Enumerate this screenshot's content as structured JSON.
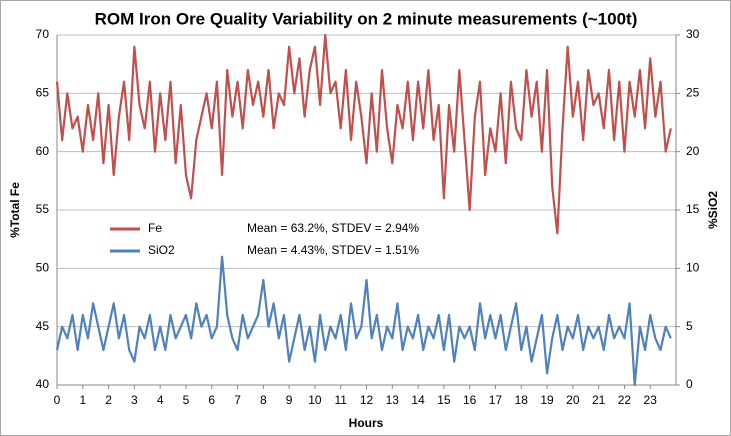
{
  "chart_data": {
    "type": "line",
    "title": "ROM Iron Ore Quality Variability on 2 minute measurements (~100t)",
    "x_label": "Hours",
    "y_label": "%Total Fe",
    "y2_label": "%SiO2",
    "x": [
      0,
      0.2,
      0.4,
      0.6,
      0.8,
      1,
      1.2,
      1.4,
      1.6,
      1.8,
      2,
      2.2,
      2.4,
      2.6,
      2.8,
      3,
      3.2,
      3.4,
      3.6,
      3.8,
      4,
      4.2,
      4.4,
      4.6,
      4.8,
      5,
      5.2,
      5.4,
      5.6,
      5.8,
      6,
      6.2,
      6.4,
      6.6,
      6.8,
      7,
      7.2,
      7.4,
      7.6,
      7.8,
      8,
      8.2,
      8.4,
      8.6,
      8.8,
      9,
      9.2,
      9.4,
      9.6,
      9.8,
      10,
      10.2,
      10.4,
      10.6,
      10.8,
      11,
      11.2,
      11.4,
      11.6,
      11.8,
      12,
      12.2,
      12.4,
      12.6,
      12.8,
      13,
      13.2,
      13.4,
      13.6,
      13.8,
      14,
      14.2,
      14.4,
      14.6,
      14.8,
      15,
      15.2,
      15.4,
      15.6,
      15.8,
      16,
      16.2,
      16.4,
      16.6,
      16.8,
      17,
      17.2,
      17.4,
      17.6,
      17.8,
      18,
      18.2,
      18.4,
      18.6,
      18.8,
      19,
      19.2,
      19.4,
      19.6,
      19.8,
      20,
      20.2,
      20.4,
      20.6,
      20.8,
      21,
      21.2,
      21.4,
      21.6,
      21.8,
      22,
      22.2,
      22.4,
      22.6,
      22.8,
      23,
      23.2,
      23.4,
      23.6,
      23.8
    ],
    "series": [
      {
        "name": "Fe",
        "color": "#c0504d",
        "axis": "y",
        "values": [
          66,
          61,
          65,
          62,
          63,
          60,
          64,
          61,
          65,
          59,
          64,
          58,
          63,
          66,
          61,
          69,
          64,
          62,
          66,
          60,
          65,
          61,
          66,
          59,
          64,
          58,
          56,
          61,
          63,
          65,
          62,
          66,
          58,
          67,
          63,
          66,
          62,
          67,
          64,
          66,
          63,
          67,
          62,
          65,
          64,
          69,
          65,
          68,
          63,
          67,
          69,
          64,
          70,
          65,
          66,
          62,
          67,
          61,
          66,
          63,
          59,
          65,
          60,
          67,
          62,
          59,
          64,
          62,
          66,
          61,
          66,
          62,
          67,
          61,
          64,
          56,
          64,
          60,
          67,
          61,
          55,
          63,
          66,
          58,
          62,
          60,
          65,
          59,
          66,
          62,
          61,
          67,
          63,
          66,
          60,
          67,
          57,
          53,
          62,
          69,
          63,
          66,
          61,
          67,
          64,
          65,
          62,
          67,
          61,
          66,
          60,
          66,
          63,
          67,
          62,
          68,
          63,
          66,
          60,
          62
        ]
      },
      {
        "name": "SiO2",
        "color": "#4f81bd",
        "axis": "y2",
        "values": [
          3,
          5,
          4,
          6,
          3,
          6,
          4,
          7,
          5,
          3,
          5,
          7,
          4,
          6,
          3,
          2,
          5,
          4,
          6,
          3,
          5,
          3,
          6,
          4,
          5,
          6,
          4,
          7,
          5,
          6,
          4,
          5,
          11,
          6,
          4,
          3,
          6,
          4,
          5,
          6,
          9,
          5,
          7,
          4,
          6,
          2,
          4,
          6,
          3,
          5,
          2,
          6,
          3,
          5,
          4,
          6,
          3,
          7,
          4,
          5,
          9,
          4,
          6,
          3,
          5,
          4,
          7,
          3,
          5,
          4,
          6,
          3,
          5,
          4,
          6,
          3,
          6,
          2,
          5,
          4,
          5,
          3,
          7,
          4,
          6,
          4,
          6,
          3,
          5,
          7,
          3,
          5,
          2,
          4,
          6,
          1,
          4,
          6,
          3,
          5,
          4,
          6,
          3,
          5,
          4,
          5,
          3,
          6,
          4,
          5,
          4,
          7,
          0,
          5,
          3,
          6,
          4,
          3,
          5,
          4
        ]
      }
    ],
    "annotations": [
      "Mean = 63.2%, STDEV = 2.94%",
      "Mean = 4.43%, STDEV = 1.51%"
    ],
    "xlim": [
      0,
      24
    ],
    "xticks": [
      0,
      1,
      2,
      3,
      4,
      5,
      6,
      7,
      8,
      9,
      10,
      11,
      12,
      13,
      14,
      15,
      16,
      17,
      18,
      19,
      20,
      21,
      22,
      23
    ],
    "ylim": [
      40,
      70
    ],
    "yticks": [
      40,
      45,
      50,
      55,
      60,
      65,
      70
    ],
    "y2lim": [
      0,
      30
    ],
    "y2ticks": [
      0,
      5,
      10,
      15,
      20,
      25,
      30
    ],
    "grid": true
  }
}
